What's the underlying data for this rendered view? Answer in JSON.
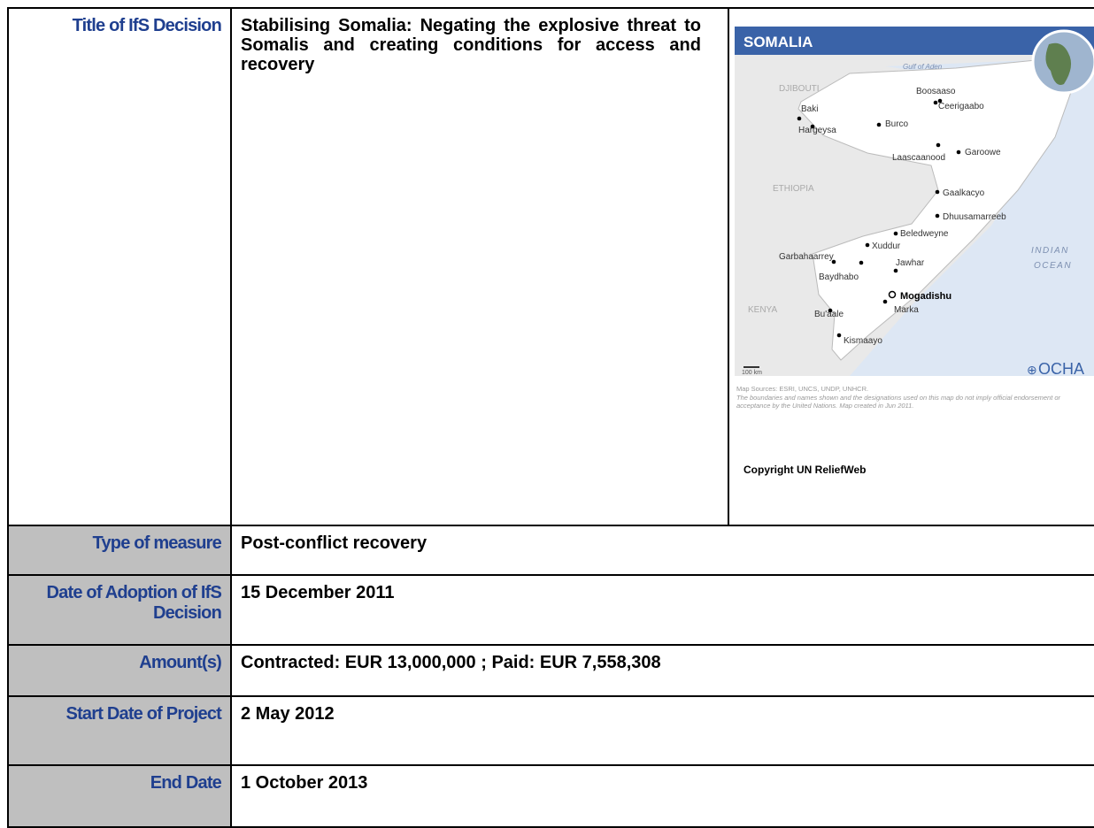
{
  "table": {
    "rows": [
      [
        "Title of IfS Decision",
        "Stabilising Somalia: Negating the explosive threat to Somalis and creating conditions for access and recovery"
      ],
      [
        "Type of measure",
        "Post-conflict recovery"
      ],
      [
        "Date of Adoption of IfS Decision",
        "15 December 2011"
      ],
      [
        "Amount(s)",
        "Contracted: EUR 13,000,000 ; Paid: EUR 7,558,308"
      ],
      [
        "Start Date of Project",
        "2 May 2012"
      ],
      [
        "End Date",
        "1 October 2013"
      ]
    ]
  },
  "map": {
    "title": "SOMALIA",
    "labels": [
      "Gulf of Aden",
      "DJIBOUTI",
      "Boosaaso",
      "Baki",
      "Ceerigaabo",
      "Burco",
      "Hargeysa",
      "Garoowe",
      "Laascaanood",
      "ETHIOPIA",
      "Gaalkacyo",
      "Dhuusamarreeb",
      "Beledweyne",
      "Xuddur",
      "INDIAN",
      "OCEAN",
      "Garbahaarrey",
      "Jawhar",
      "Baydhabo",
      "Mogadishu",
      "Marka",
      "KENYA",
      "Bu'aale",
      "Kismaayo"
    ],
    "scale": "100 km",
    "credit": "OCHA",
    "sources": "Map Sources: ESRI, UNCS, UNDP, UNHCR.",
    "disclaimer": "The boundaries and names shown and the designations used on this map do not imply official endorsement or acceptance by the United Nations. Map created in Jun 2011.",
    "copyright": "Copyright UN ReliefWeb"
  }
}
